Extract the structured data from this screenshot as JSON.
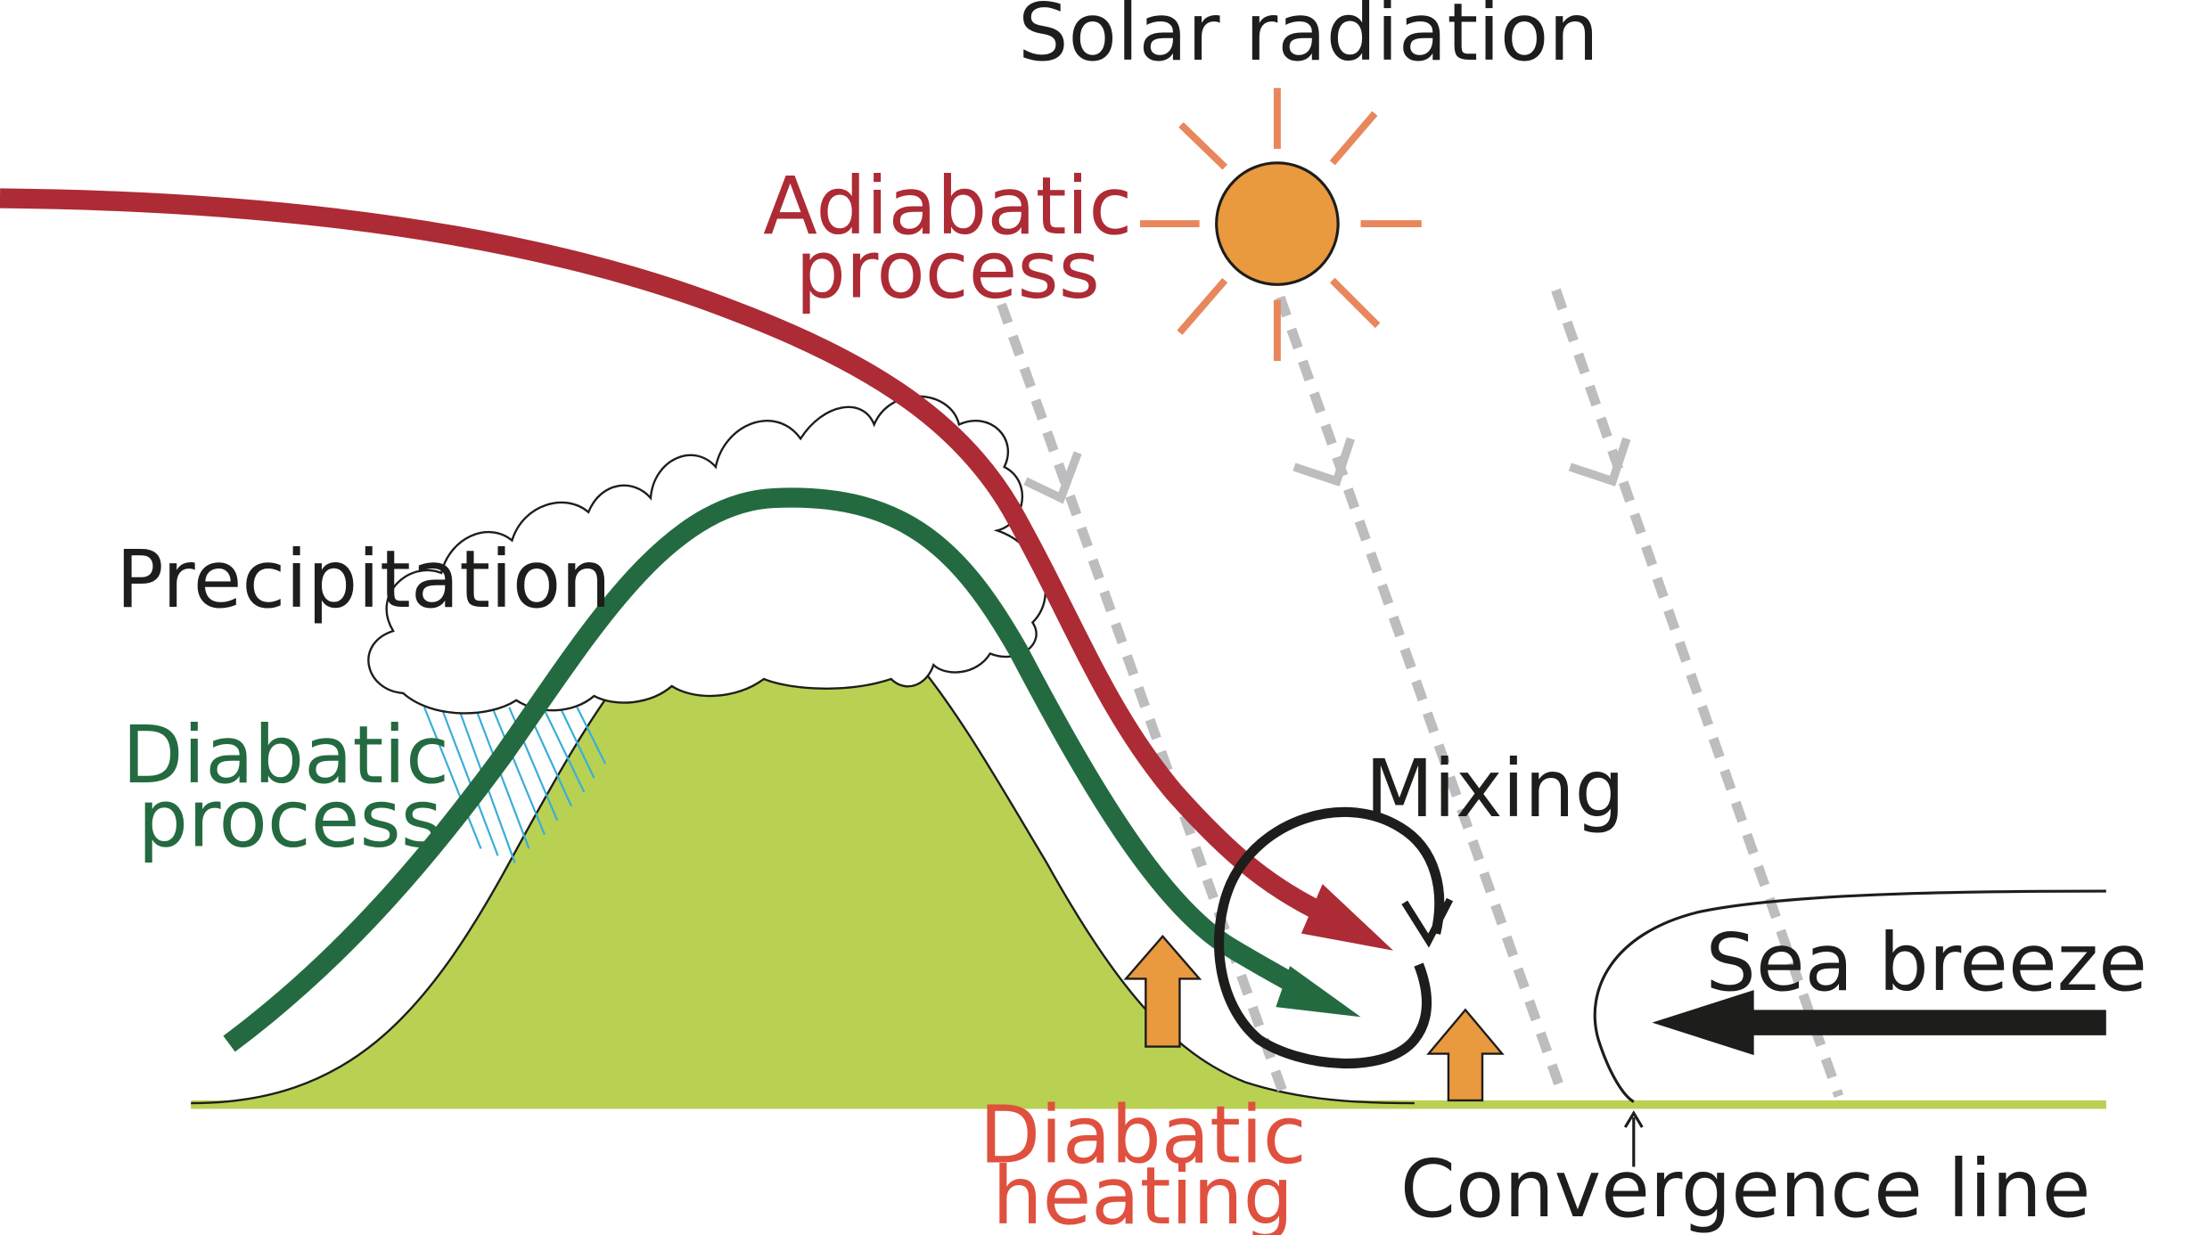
{
  "labels": {
    "solar_radiation": "Solar radiation",
    "adiabatic_1": "Adiabatic",
    "adiabatic_2": "process",
    "precipitation": "Precipitation",
    "diabatic_process_1": "Diabatic",
    "diabatic_process_2": "process",
    "mixing": "Mixing",
    "sea_breeze": "Sea breeze",
    "diabatic_heating_1": "Diabatic",
    "diabatic_heating_2": "heating",
    "convergence_line": "Convergence line"
  },
  "colors": {
    "adiabatic_red": "#ad2b35",
    "diabatic_green": "#246a40",
    "mountain_green": "#b8d153",
    "sun_orange": "#e9993e",
    "sun_ray": "#e8875c",
    "heating_text": "#e0503e",
    "heating_arrow": "#e9993e",
    "radiation_gray": "#bdbdbf",
    "rain_blue": "#3aaed8",
    "mixing_black": "#1d1d1b"
  }
}
